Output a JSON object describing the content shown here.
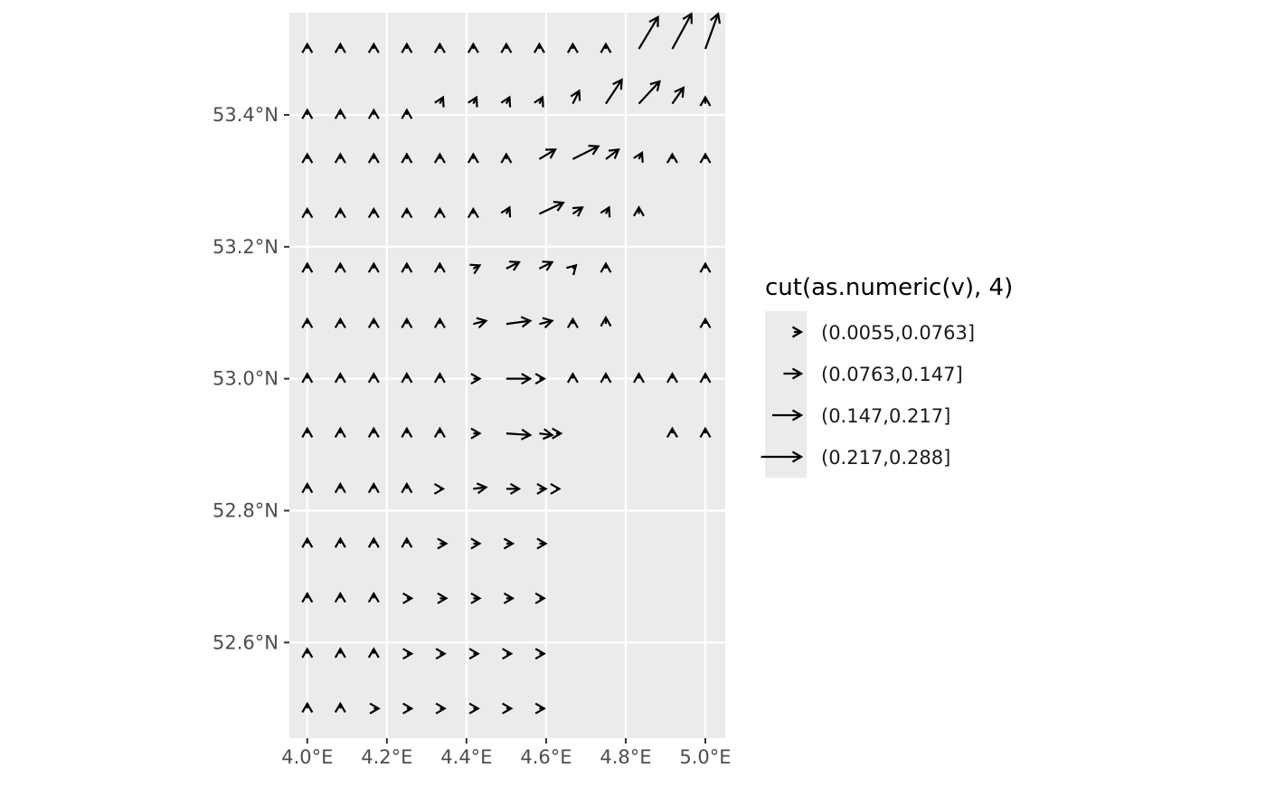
{
  "chart_data": {
    "type": "scatter",
    "subtype": "vector-field",
    "title": "",
    "xlabel": "",
    "ylabel": "",
    "xlim": [
      3.955,
      5.05
    ],
    "ylim": [
      52.455,
      53.555
    ],
    "x_ticks": [
      4.0,
      4.2,
      4.4,
      4.6,
      4.8,
      5.0
    ],
    "x_tick_labels": [
      "4.0°E",
      "4.2°E",
      "4.4°E",
      "4.6°E",
      "4.8°E",
      "5.0°E"
    ],
    "y_ticks": [
      52.6,
      52.8,
      53.0,
      53.2,
      53.4
    ],
    "y_tick_labels": [
      "52.6°N",
      "52.8°N",
      "53.0°N",
      "53.2°N",
      "53.4°N"
    ],
    "grid": true,
    "background": "#ebebeb",
    "legend": {
      "title": "cut(as.numeric(v), 4)",
      "position": "right",
      "entries": [
        {
          "label": "(0.0055,0.0763]",
          "length": 0.045
        },
        {
          "label": "(0.0763,0.147]",
          "length": 0.111
        },
        {
          "label": "(0.147,0.217]",
          "length": 0.182
        },
        {
          "label": "(0.217,0.288]",
          "length": 0.252
        }
      ]
    },
    "vector_scale_x": 0.4,
    "vectors_note": "each vector: [x (deg E), y (deg N), u, v] in magnitude units",
    "vectors": [
      [
        4.0,
        53.5,
        0.0,
        0.03
      ],
      [
        4.083,
        53.5,
        0.0,
        0.03
      ],
      [
        4.167,
        53.5,
        0.0,
        0.03
      ],
      [
        4.25,
        53.5,
        0.0,
        0.03
      ],
      [
        4.333,
        53.5,
        0.0,
        0.03
      ],
      [
        4.417,
        53.5,
        0.0,
        0.03
      ],
      [
        4.5,
        53.5,
        0.0,
        0.03
      ],
      [
        4.583,
        53.5,
        0.0,
        0.03
      ],
      [
        4.667,
        53.5,
        0.0,
        0.03
      ],
      [
        4.75,
        53.5,
        0.0,
        0.03
      ],
      [
        4.833,
        53.5,
        0.12,
        0.2
      ],
      [
        4.917,
        53.5,
        0.12,
        0.22
      ],
      [
        5.0,
        53.5,
        0.08,
        0.22
      ],
      [
        4.0,
        53.4,
        0.0,
        0.03
      ],
      [
        4.083,
        53.4,
        0.0,
        0.03
      ],
      [
        4.167,
        53.4,
        0.0,
        0.03
      ],
      [
        4.25,
        53.4,
        0.0,
        0.03
      ],
      [
        4.333,
        53.417,
        0.02,
        0.04
      ],
      [
        4.417,
        53.417,
        0.02,
        0.04
      ],
      [
        4.5,
        53.417,
        0.02,
        0.04
      ],
      [
        4.583,
        53.417,
        0.02,
        0.04
      ],
      [
        4.667,
        53.417,
        0.04,
        0.08
      ],
      [
        4.75,
        53.417,
        0.1,
        0.15
      ],
      [
        4.833,
        53.417,
        0.13,
        0.14
      ],
      [
        4.917,
        53.417,
        0.07,
        0.1
      ],
      [
        5.0,
        53.417,
        0.0,
        0.04
      ],
      [
        4.0,
        53.333,
        0.0,
        0.03
      ],
      [
        4.083,
        53.333,
        0.0,
        0.03
      ],
      [
        4.167,
        53.333,
        0.0,
        0.03
      ],
      [
        4.25,
        53.333,
        0.0,
        0.03
      ],
      [
        4.333,
        53.333,
        0.0,
        0.03
      ],
      [
        4.417,
        53.333,
        0.0,
        0.03
      ],
      [
        4.5,
        53.333,
        0.0,
        0.03
      ],
      [
        4.583,
        53.333,
        0.1,
        0.06
      ],
      [
        4.667,
        53.333,
        0.16,
        0.08
      ],
      [
        4.75,
        53.333,
        0.08,
        0.06
      ],
      [
        4.833,
        53.333,
        0.02,
        0.04
      ],
      [
        4.917,
        53.333,
        0.0,
        0.03
      ],
      [
        5.0,
        53.333,
        0.0,
        0.03
      ],
      [
        4.0,
        53.25,
        0.0,
        0.03
      ],
      [
        4.083,
        53.25,
        0.0,
        0.03
      ],
      [
        4.167,
        53.25,
        0.0,
        0.03
      ],
      [
        4.25,
        53.25,
        0.0,
        0.03
      ],
      [
        4.333,
        53.25,
        0.0,
        0.03
      ],
      [
        4.417,
        53.25,
        0.0,
        0.03
      ],
      [
        4.5,
        53.25,
        0.02,
        0.04
      ],
      [
        4.583,
        53.25,
        0.15,
        0.07
      ],
      [
        4.667,
        53.25,
        0.06,
        0.04
      ],
      [
        4.75,
        53.25,
        0.02,
        0.04
      ],
      [
        4.833,
        53.25,
        0.0,
        0.04
      ],
      [
        4.0,
        53.167,
        0.0,
        0.03
      ],
      [
        4.083,
        53.167,
        0.0,
        0.03
      ],
      [
        4.167,
        53.167,
        0.0,
        0.03
      ],
      [
        4.25,
        53.167,
        0.0,
        0.03
      ],
      [
        4.333,
        53.167,
        0.0,
        0.03
      ],
      [
        4.417,
        53.167,
        0.04,
        0.02
      ],
      [
        4.5,
        53.167,
        0.08,
        0.04
      ],
      [
        4.583,
        53.167,
        0.08,
        0.04
      ],
      [
        4.667,
        53.167,
        0.02,
        0.02
      ],
      [
        4.75,
        53.167,
        0.0,
        0.03
      ],
      [
        5.0,
        53.167,
        0.0,
        0.03
      ],
      [
        4.0,
        53.083,
        0.0,
        0.03
      ],
      [
        4.083,
        53.083,
        0.0,
        0.03
      ],
      [
        4.167,
        53.083,
        0.0,
        0.03
      ],
      [
        4.25,
        53.083,
        0.0,
        0.03
      ],
      [
        4.333,
        53.083,
        0.0,
        0.03
      ],
      [
        4.417,
        53.083,
        0.08,
        0.02
      ],
      [
        4.5,
        53.083,
        0.15,
        0.02
      ],
      [
        4.583,
        53.083,
        0.08,
        0.02
      ],
      [
        4.667,
        53.083,
        0.0,
        0.03
      ],
      [
        4.75,
        53.083,
        0.0,
        0.04
      ],
      [
        5.0,
        53.083,
        0.0,
        0.03
      ],
      [
        4.0,
        53.0,
        0.0,
        0.03
      ],
      [
        4.083,
        53.0,
        0.0,
        0.03
      ],
      [
        4.167,
        53.0,
        0.0,
        0.03
      ],
      [
        4.25,
        53.0,
        0.0,
        0.03
      ],
      [
        4.333,
        53.0,
        0.0,
        0.03
      ],
      [
        4.417,
        53.0,
        0.04,
        0.0
      ],
      [
        4.5,
        53.0,
        0.15,
        0.0
      ],
      [
        4.583,
        53.0,
        0.03,
        0.0
      ],
      [
        4.667,
        53.0,
        0.0,
        0.03
      ],
      [
        4.75,
        53.0,
        0.0,
        0.03
      ],
      [
        4.833,
        53.0,
        0.0,
        0.03
      ],
      [
        4.917,
        53.0,
        0.0,
        0.03
      ],
      [
        5.0,
        53.0,
        0.0,
        0.03
      ],
      [
        4.0,
        52.917,
        0.0,
        0.03
      ],
      [
        4.083,
        52.917,
        0.0,
        0.03
      ],
      [
        4.167,
        52.917,
        0.0,
        0.03
      ],
      [
        4.25,
        52.917,
        0.0,
        0.03
      ],
      [
        4.333,
        52.917,
        0.0,
        0.03
      ],
      [
        4.417,
        52.917,
        0.04,
        0.0
      ],
      [
        4.5,
        52.917,
        0.15,
        -0.01
      ],
      [
        4.583,
        52.917,
        0.08,
        -0.01
      ],
      [
        4.625,
        52.917,
        0.03,
        0.0
      ],
      [
        4.917,
        52.917,
        0.0,
        0.03
      ],
      [
        5.0,
        52.917,
        0.0,
        0.03
      ],
      [
        4.0,
        52.833,
        0.0,
        0.03
      ],
      [
        4.083,
        52.833,
        0.0,
        0.03
      ],
      [
        4.167,
        52.833,
        0.0,
        0.03
      ],
      [
        4.25,
        52.833,
        0.0,
        0.03
      ],
      [
        4.333,
        52.833,
        0.02,
        0.0
      ],
      [
        4.417,
        52.833,
        0.08,
        0.01
      ],
      [
        4.5,
        52.833,
        0.08,
        0.0
      ],
      [
        4.583,
        52.833,
        0.04,
        0.0
      ],
      [
        4.625,
        52.833,
        0.02,
        0.0
      ],
      [
        4.0,
        52.75,
        0.0,
        0.03
      ],
      [
        4.083,
        52.75,
        0.0,
        0.03
      ],
      [
        4.167,
        52.75,
        0.0,
        0.03
      ],
      [
        4.25,
        52.75,
        0.0,
        0.03
      ],
      [
        4.333,
        52.75,
        0.04,
        0.0
      ],
      [
        4.417,
        52.75,
        0.04,
        0.0
      ],
      [
        4.5,
        52.75,
        0.04,
        0.0
      ],
      [
        4.583,
        52.75,
        0.04,
        0.0
      ],
      [
        4.0,
        52.667,
        0.0,
        0.03
      ],
      [
        4.083,
        52.667,
        0.0,
        0.03
      ],
      [
        4.167,
        52.667,
        0.0,
        0.03
      ],
      [
        4.25,
        52.667,
        0.03,
        0.0
      ],
      [
        4.333,
        52.667,
        0.04,
        0.0
      ],
      [
        4.417,
        52.667,
        0.04,
        0.0
      ],
      [
        4.5,
        52.667,
        0.04,
        0.0
      ],
      [
        4.583,
        52.667,
        0.03,
        0.0
      ],
      [
        4.0,
        52.583,
        0.0,
        0.03
      ],
      [
        4.083,
        52.583,
        0.0,
        0.03
      ],
      [
        4.167,
        52.583,
        0.0,
        0.03
      ],
      [
        4.25,
        52.583,
        0.03,
        0.0
      ],
      [
        4.333,
        52.583,
        0.03,
        0.0
      ],
      [
        4.417,
        52.583,
        0.03,
        0.0
      ],
      [
        4.5,
        52.583,
        0.03,
        0.0
      ],
      [
        4.583,
        52.583,
        0.03,
        0.0
      ],
      [
        4.0,
        52.5,
        0.0,
        0.03
      ],
      [
        4.083,
        52.5,
        0.0,
        0.03
      ],
      [
        4.167,
        52.5,
        0.03,
        0.0
      ],
      [
        4.25,
        52.5,
        0.03,
        0.0
      ],
      [
        4.333,
        52.5,
        0.03,
        0.0
      ],
      [
        4.417,
        52.5,
        0.03,
        0.0
      ],
      [
        4.5,
        52.5,
        0.03,
        0.0
      ],
      [
        4.583,
        52.5,
        0.03,
        0.0
      ]
    ]
  }
}
